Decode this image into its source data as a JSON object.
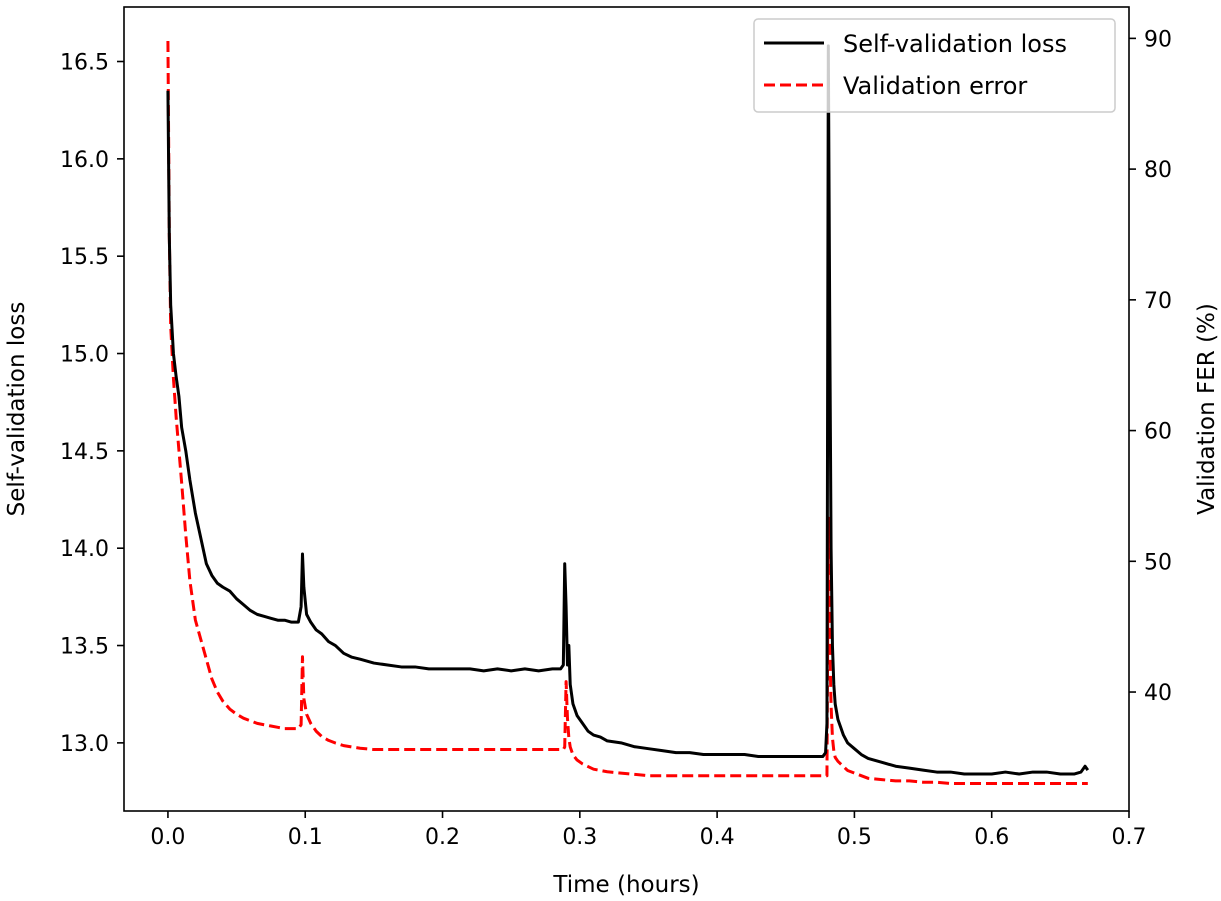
{
  "chart_data": {
    "type": "line",
    "title": "",
    "xlabel": "Time (hours)",
    "ylabel_left": "Self-validation loss",
    "ylabel_right": "Validation FER (%)",
    "xlim": [
      -0.032,
      0.7
    ],
    "ylim_left": [
      12.65,
      16.78
    ],
    "ylim_right": [
      30.9,
      92.4
    ],
    "x_ticks": [
      0.0,
      0.1,
      0.2,
      0.3,
      0.4,
      0.5,
      0.6,
      0.7
    ],
    "x_tick_labels": [
      "0.0",
      "0.1",
      "0.2",
      "0.3",
      "0.4",
      "0.5",
      "0.6",
      "0.7"
    ],
    "y_left_ticks": [
      13.0,
      13.5,
      14.0,
      14.5,
      15.0,
      15.5,
      16.0,
      16.5
    ],
    "y_left_tick_labels": [
      "13.0",
      "13.5",
      "14.0",
      "14.5",
      "15.0",
      "15.5",
      "16.0",
      "16.5"
    ],
    "y_right_ticks": [
      40,
      50,
      60,
      70,
      80,
      90
    ],
    "y_right_tick_labels": [
      "40",
      "50",
      "60",
      "70",
      "80",
      "90"
    ],
    "grid": false,
    "legend_position": "top-right",
    "series": [
      {
        "name": "Self-validation loss",
        "axis": "left",
        "color": "#000000",
        "dash": "solid",
        "x": [
          0.0,
          0.001,
          0.002,
          0.004,
          0.006,
          0.008,
          0.01,
          0.013,
          0.016,
          0.02,
          0.024,
          0.028,
          0.032,
          0.036,
          0.04,
          0.045,
          0.05,
          0.055,
          0.06,
          0.065,
          0.07,
          0.075,
          0.08,
          0.085,
          0.09,
          0.095,
          0.097,
          0.098,
          0.099,
          0.101,
          0.104,
          0.108,
          0.112,
          0.117,
          0.122,
          0.128,
          0.134,
          0.14,
          0.15,
          0.16,
          0.17,
          0.18,
          0.19,
          0.2,
          0.21,
          0.22,
          0.23,
          0.24,
          0.25,
          0.26,
          0.27,
          0.28,
          0.286,
          0.288,
          0.289,
          0.29,
          0.291,
          0.292,
          0.293,
          0.295,
          0.298,
          0.302,
          0.306,
          0.31,
          0.315,
          0.32,
          0.33,
          0.34,
          0.35,
          0.36,
          0.37,
          0.38,
          0.39,
          0.4,
          0.41,
          0.42,
          0.43,
          0.44,
          0.45,
          0.46,
          0.47,
          0.477,
          0.479,
          0.48,
          0.481,
          0.482,
          0.483,
          0.484,
          0.485,
          0.486,
          0.488,
          0.49,
          0.492,
          0.495,
          0.5,
          0.505,
          0.51,
          0.52,
          0.53,
          0.54,
          0.55,
          0.56,
          0.57,
          0.58,
          0.59,
          0.6,
          0.61,
          0.62,
          0.63,
          0.64,
          0.65,
          0.66,
          0.665,
          0.668,
          0.67
        ],
        "y": [
          16.35,
          15.6,
          15.25,
          15.0,
          14.88,
          14.78,
          14.62,
          14.5,
          14.35,
          14.18,
          14.05,
          13.92,
          13.86,
          13.82,
          13.8,
          13.78,
          13.74,
          13.71,
          13.68,
          13.66,
          13.65,
          13.64,
          13.63,
          13.63,
          13.62,
          13.62,
          13.7,
          13.97,
          13.8,
          13.66,
          13.62,
          13.58,
          13.56,
          13.52,
          13.5,
          13.46,
          13.44,
          13.43,
          13.41,
          13.4,
          13.39,
          13.39,
          13.38,
          13.38,
          13.38,
          13.38,
          13.37,
          13.38,
          13.37,
          13.38,
          13.37,
          13.38,
          13.38,
          13.4,
          13.92,
          13.7,
          13.4,
          13.5,
          13.3,
          13.2,
          13.14,
          13.1,
          13.06,
          13.04,
          13.03,
          13.01,
          13.0,
          12.98,
          12.97,
          12.96,
          12.95,
          12.95,
          12.94,
          12.94,
          12.94,
          12.94,
          12.93,
          12.93,
          12.93,
          12.93,
          12.93,
          12.93,
          12.95,
          13.1,
          16.58,
          15.2,
          14.0,
          13.5,
          13.3,
          13.2,
          13.12,
          13.08,
          13.04,
          13.0,
          12.97,
          12.94,
          12.92,
          12.9,
          12.88,
          12.87,
          12.86,
          12.85,
          12.85,
          12.84,
          12.84,
          12.84,
          12.85,
          12.84,
          12.85,
          12.85,
          12.84,
          12.84,
          12.85,
          12.88,
          12.86
        ]
      },
      {
        "name": "Validation error",
        "axis": "right",
        "color": "#ff0000",
        "dash": "dashed",
        "x": [
          0.0,
          0.001,
          0.002,
          0.004,
          0.006,
          0.008,
          0.01,
          0.013,
          0.016,
          0.02,
          0.024,
          0.028,
          0.032,
          0.036,
          0.04,
          0.045,
          0.05,
          0.055,
          0.06,
          0.065,
          0.07,
          0.075,
          0.08,
          0.085,
          0.09,
          0.095,
          0.097,
          0.098,
          0.099,
          0.101,
          0.104,
          0.108,
          0.112,
          0.117,
          0.122,
          0.128,
          0.134,
          0.14,
          0.15,
          0.16,
          0.17,
          0.18,
          0.19,
          0.2,
          0.21,
          0.22,
          0.23,
          0.24,
          0.25,
          0.26,
          0.27,
          0.28,
          0.286,
          0.288,
          0.289,
          0.29,
          0.291,
          0.292,
          0.293,
          0.295,
          0.298,
          0.302,
          0.306,
          0.31,
          0.315,
          0.32,
          0.33,
          0.34,
          0.35,
          0.36,
          0.37,
          0.38,
          0.39,
          0.4,
          0.41,
          0.42,
          0.43,
          0.44,
          0.45,
          0.46,
          0.47,
          0.477,
          0.479,
          0.48,
          0.481,
          0.482,
          0.483,
          0.484,
          0.485,
          0.486,
          0.488,
          0.49,
          0.492,
          0.495,
          0.5,
          0.505,
          0.51,
          0.52,
          0.53,
          0.54,
          0.55,
          0.56,
          0.57,
          0.58,
          0.59,
          0.6,
          0.61,
          0.62,
          0.63,
          0.64,
          0.65,
          0.66,
          0.665,
          0.668,
          0.67
        ],
        "y": [
          89.8,
          75.0,
          68.0,
          64.0,
          61.0,
          58.5,
          56.0,
          52.0,
          48.5,
          45.5,
          44.0,
          42.5,
          41.0,
          40.0,
          39.3,
          38.7,
          38.3,
          38.0,
          37.8,
          37.6,
          37.5,
          37.4,
          37.3,
          37.2,
          37.2,
          37.2,
          37.5,
          42.7,
          39.5,
          38.3,
          37.6,
          37.0,
          36.6,
          36.3,
          36.1,
          35.9,
          35.8,
          35.7,
          35.6,
          35.6,
          35.6,
          35.6,
          35.6,
          35.6,
          35.6,
          35.6,
          35.6,
          35.6,
          35.6,
          35.6,
          35.6,
          35.6,
          35.6,
          35.6,
          35.8,
          40.8,
          38.0,
          36.5,
          35.8,
          35.2,
          34.8,
          34.5,
          34.3,
          34.1,
          34.0,
          33.9,
          33.8,
          33.7,
          33.6,
          33.6,
          33.6,
          33.6,
          33.6,
          33.6,
          33.6,
          33.6,
          33.6,
          33.6,
          33.6,
          33.6,
          33.6,
          33.6,
          33.6,
          33.6,
          53.3,
          44.0,
          39.0,
          36.5,
          35.5,
          35.0,
          34.7,
          34.5,
          34.3,
          34.0,
          33.8,
          33.6,
          33.4,
          33.3,
          33.2,
          33.2,
          33.1,
          33.1,
          33.0,
          33.0,
          33.0,
          33.0,
          33.0,
          33.0,
          33.0,
          33.0,
          33.0,
          33.0,
          33.0,
          33.0,
          33.0
        ]
      }
    ]
  }
}
